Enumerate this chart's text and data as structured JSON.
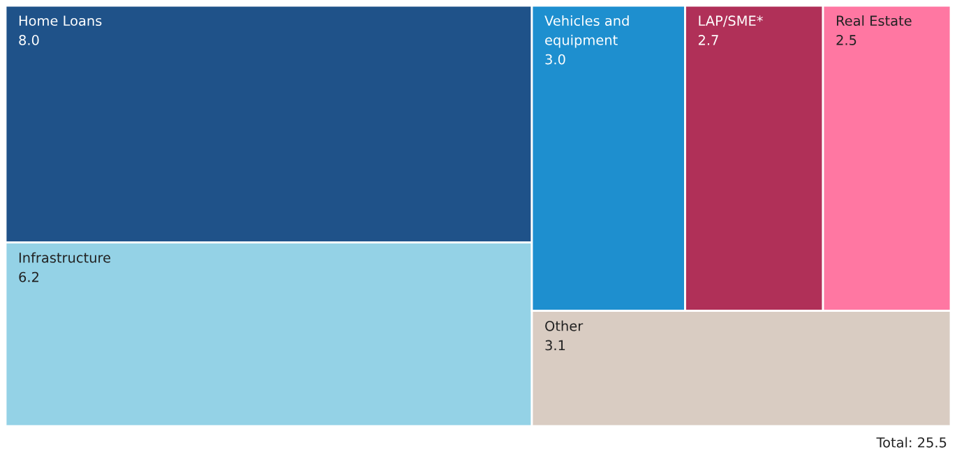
{
  "chart_data": {
    "type": "other",
    "categories": [
      "Home Loans",
      "Infrastructure",
      "Vehicles and equipment",
      "LAP/SME*",
      "Real Estate",
      "Other"
    ],
    "values": [
      8.0,
      6.2,
      3.0,
      2.7,
      2.5,
      3.1
    ],
    "value_labels": [
      "8.0",
      "6.2",
      "3.0",
      "2.7",
      "2.5",
      "3.1"
    ],
    "colors": [
      "#1f5289",
      "#94d2e6",
      "#1e8fcf",
      "#b03058",
      "#ff77a2",
      "#d9ccc2"
    ],
    "annotations": [
      "Total: 25.5"
    ]
  }
}
